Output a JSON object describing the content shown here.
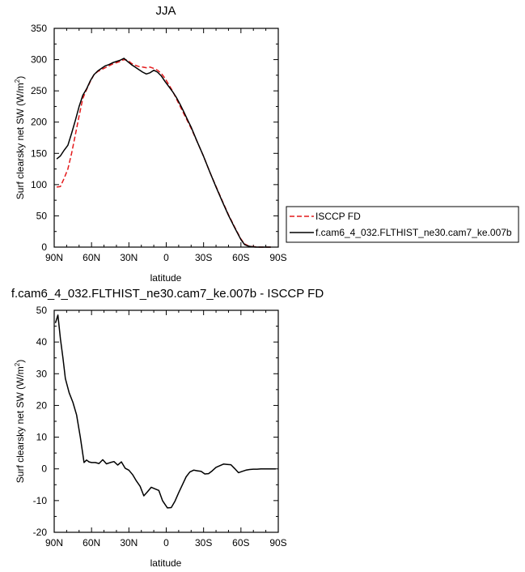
{
  "chart_data": [
    {
      "type": "line",
      "title": "JJA",
      "xlabel": "latitude",
      "ylabel": "Surf clearsky net SW (W/m",
      "ylabel_sup": "2",
      "ylabel_end": ")",
      "xlim": [
        90,
        -90
      ],
      "ylim": [
        0,
        350
      ],
      "x_ticks": [
        90,
        60,
        30,
        0,
        -30,
        -60,
        -90
      ],
      "x_tick_labels": [
        "90N",
        "60N",
        "30N",
        "0",
        "30S",
        "60S",
        "90S"
      ],
      "y_ticks": [
        0,
        50,
        100,
        150,
        200,
        250,
        300,
        350
      ],
      "y_tick_labels": [
        "0",
        "50",
        "100",
        "150",
        "200",
        "250",
        "300",
        "350"
      ],
      "legend_position": "right",
      "series": [
        {
          "name": "ISCCP FD",
          "color": "#e41a1c",
          "style": "dashed",
          "x": [
            88,
            85,
            82,
            79,
            76,
            73,
            70,
            67,
            64,
            61,
            58,
            55,
            52,
            49,
            46,
            43,
            40,
            37,
            34,
            31,
            28,
            25,
            22,
            19,
            16,
            13,
            10,
            7,
            4,
            1,
            -2,
            -5,
            -8,
            -11,
            -14,
            -17,
            -20,
            -25,
            -30,
            -35,
            -40,
            -45,
            -50,
            -55,
            -60,
            -63,
            -66,
            -69,
            -72,
            -75,
            -78,
            -81,
            -84
          ],
          "y": [
            96,
            97,
            110,
            125,
            150,
            180,
            210,
            238,
            252,
            265,
            276,
            281,
            284,
            287,
            290,
            293,
            295,
            297,
            300,
            299,
            294,
            291,
            289,
            288,
            287,
            288,
            286,
            283,
            278,
            270,
            260,
            250,
            238,
            226,
            214,
            202,
            190,
            168,
            145,
            120,
            97,
            74,
            52,
            32,
            13,
            5,
            2,
            1,
            0.5,
            0,
            0,
            0,
            0
          ]
        },
        {
          "name": "f.cam6_4_032.FLTHIST_ne30.cam7_ke.007b",
          "color": "#000000",
          "style": "solid",
          "x": [
            88,
            85,
            82,
            79,
            76,
            73,
            70,
            67,
            64,
            61,
            58,
            55,
            52,
            49,
            46,
            43,
            40,
            37,
            34,
            31,
            28,
            25,
            22,
            19,
            16,
            13,
            10,
            7,
            4,
            1,
            -2,
            -5,
            -8,
            -11,
            -14,
            -17,
            -20,
            -25,
            -30,
            -35,
            -40,
            -45,
            -50,
            -55,
            -60,
            -63,
            -66,
            -69,
            -72,
            -75,
            -78,
            -81,
            -84
          ],
          "y": [
            141,
            146,
            155,
            163,
            182,
            203,
            225,
            243,
            253,
            266,
            276,
            282,
            286,
            290,
            292,
            295,
            297,
            299,
            302,
            297,
            292,
            288,
            284,
            280,
            277,
            279,
            283,
            280,
            274,
            265,
            257,
            249,
            240,
            229,
            217,
            204,
            192,
            168,
            145,
            120,
            96,
            73,
            51,
            31,
            12,
            4,
            1.5,
            0.5,
            0,
            0,
            0,
            0,
            0
          ]
        }
      ]
    },
    {
      "type": "line",
      "title": "f.cam6_4_032.FLTHIST_ne30.cam7_ke.007b - ISCCP FD",
      "xlabel": "latitude",
      "ylabel": "Surf clearsky net SW (W/m",
      "ylabel_sup": "2",
      "ylabel_end": ")",
      "xlim": [
        90,
        -90
      ],
      "ylim": [
        -20,
        50
      ],
      "x_ticks": [
        90,
        60,
        30,
        0,
        -30,
        -60,
        -90
      ],
      "x_tick_labels": [
        "90N",
        "60N",
        "30N",
        "0",
        "30S",
        "60S",
        "90S"
      ],
      "y_ticks": [
        -20,
        -10,
        0,
        10,
        20,
        30,
        40,
        50
      ],
      "y_tick_labels": [
        "-20",
        "-10",
        "0",
        "10",
        "20",
        "30",
        "40",
        "50"
      ],
      "series": [
        {
          "color": "#000000",
          "style": "solid",
          "x": [
            89,
            87,
            85,
            83,
            81,
            78,
            75,
            72,
            69,
            66,
            64,
            62,
            60,
            57,
            54,
            51,
            48,
            45,
            42,
            39,
            36,
            33,
            30,
            27,
            24,
            21,
            18,
            15,
            12,
            9,
            6,
            3,
            1,
            -1,
            -4,
            -7,
            -10,
            -13,
            -16,
            -19,
            -22,
            -25,
            -28,
            -31,
            -34,
            -37,
            -40,
            -43,
            -46,
            -49,
            -52,
            -55,
            -58,
            -61,
            -64,
            -67,
            -70,
            -73,
            -76,
            -80,
            -84,
            -88
          ],
          "y": [
            46,
            48.5,
            41,
            35,
            28.5,
            24,
            21,
            17,
            10,
            2,
            2.8,
            2.2,
            2,
            2,
            1.7,
            2.9,
            1.6,
            2,
            2.3,
            1.2,
            2.2,
            0.2,
            -0.4,
            -1.8,
            -3.8,
            -5.5,
            -8.5,
            -7.2,
            -5.8,
            -6.3,
            -6.8,
            -10,
            -11.2,
            -12.3,
            -12.2,
            -10.2,
            -7.5,
            -5,
            -2.5,
            -1,
            -0.4,
            -0.6,
            -0.8,
            -1.6,
            -1.5,
            -0.6,
            0.5,
            1,
            1.5,
            1.4,
            1.3,
            0.1,
            -1.2,
            -0.8,
            -0.4,
            -0.2,
            -0.1,
            -0.1,
            0,
            0,
            0,
            0
          ]
        }
      ]
    }
  ]
}
